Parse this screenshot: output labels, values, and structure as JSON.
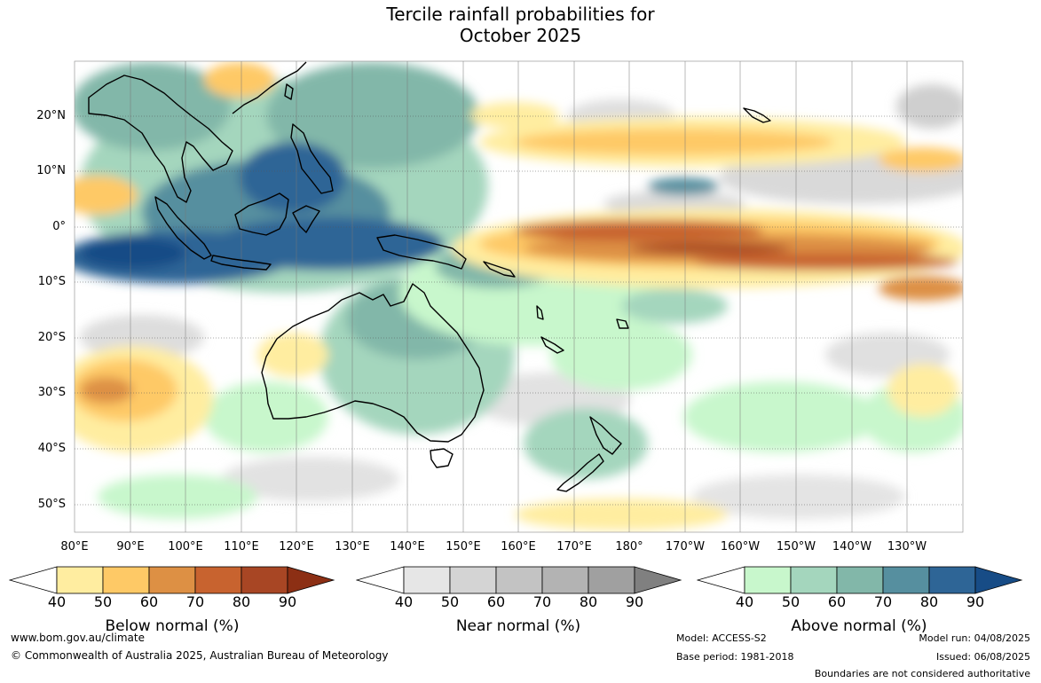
{
  "title": {
    "line1": "Tercile rainfall probabilities for",
    "line2": "October 2025"
  },
  "map": {
    "lat_labels": [
      "20°N",
      "10°N",
      "0°",
      "10°S",
      "20°S",
      "30°S",
      "40°S",
      "50°S"
    ],
    "lon_labels": [
      "80°E",
      "90°E",
      "100°E",
      "110°E",
      "120°E",
      "130°E",
      "140°E",
      "150°E",
      "160°E",
      "170°E",
      "180°",
      "170°W",
      "160°W",
      "150°W",
      "140°W",
      "130°W"
    ],
    "extent": {
      "lon_min": 80,
      "lon_max": 240,
      "lat_min": -55,
      "lat_max": 30
    },
    "probability_classes": [
      40,
      50,
      60,
      70,
      80,
      90
    ],
    "regions_described": {
      "above_normal": [
        "Maritime Continent and Indonesia",
        "eastern Indian Ocean near 5°S",
        "northern and eastern Australia",
        "New Zealand",
        "Philippines"
      ],
      "below_normal": [
        "central and eastern equatorial Pacific",
        "northern tropical Pacific near 10–15°N",
        "southern Indian Ocean near 25–35°S"
      ]
    }
  },
  "colorbars": [
    {
      "title": "Below normal (%)",
      "ticks": [
        "40",
        "50",
        "60",
        "70",
        "80",
        "90"
      ],
      "colors": [
        "#ffffff",
        "#ffeda0",
        "#fec966",
        "#dd9044",
        "#c8632f",
        "#a84624",
        "#8c2f14"
      ]
    },
    {
      "title": "Near normal (%)",
      "ticks": [
        "40",
        "50",
        "60",
        "70",
        "80",
        "90"
      ],
      "colors": [
        "#ffffff",
        "#e6e6e6",
        "#d4d4d4",
        "#c3c3c3",
        "#b3b3b3",
        "#a0a0a0",
        "#808080"
      ]
    },
    {
      "title": "Above normal (%)",
      "ticks": [
        "40",
        "50",
        "60",
        "70",
        "80",
        "90"
      ],
      "colors": [
        "#ffffff",
        "#c8f7cc",
        "#a4d6bd",
        "#82b7a9",
        "#568f9f",
        "#2e6596",
        "#174c86"
      ]
    }
  ],
  "footer": {
    "website": "www.bom.gov.au/climate",
    "copyright": "© Commonwealth of Australia 2025, Australian Bureau of Meteorology",
    "model": "Model: ACCESS-S2",
    "base_period": "Base period: 1981-2018",
    "model_run": "Model run: 04/08/2025",
    "issued": "Issued: 06/08/2025",
    "disclaimer": "Boundaries are not considered authoritative"
  }
}
